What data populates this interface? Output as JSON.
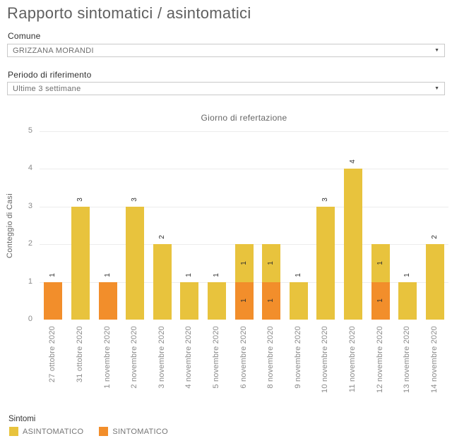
{
  "page": {
    "title": "Rapporto sintomatici / asintomatici"
  },
  "filters": {
    "comune": {
      "label": "Comune",
      "value": "GRIZZANA MORANDI"
    },
    "periodo": {
      "label": "Periodo di riferimento",
      "value": "Ultime 3 settimane"
    }
  },
  "chart_data": {
    "type": "bar",
    "stacked": true,
    "title": "Giorno di refertazione",
    "xlabel": "",
    "ylabel": "Conteggio di Casi",
    "ylim": [
      0,
      5
    ],
    "yticks": [
      0,
      1,
      2,
      3,
      4,
      5
    ],
    "grid": true,
    "label_rotation_deg": -90,
    "categories": [
      "27 ottobre 2020",
      "31 ottobre 2020",
      "1 novembre 2020",
      "2 novembre 2020",
      "3 novembre 2020",
      "4 novembre 2020",
      "5 novembre 2020",
      "6 novembre 2020",
      "8 novembre 2020",
      "9 novembre 2020",
      "10 novembre 2020",
      "11 novembre 2020",
      "12 novembre 2020",
      "13 novembre 2020",
      "14 novembre 2020"
    ],
    "series": [
      {
        "name": "SINTOMATICO",
        "color": "#F28E2B",
        "values": [
          1,
          0,
          1,
          0,
          0,
          0,
          0,
          1,
          1,
          0,
          0,
          0,
          1,
          0,
          0
        ]
      },
      {
        "name": "ASINTOMATICO",
        "color": "#E8C33D",
        "values": [
          0,
          3,
          0,
          3,
          2,
          1,
          1,
          1,
          1,
          1,
          3,
          4,
          1,
          1,
          2
        ]
      }
    ]
  },
  "legend": {
    "title": "Sintomi",
    "items": [
      {
        "label": "ASINTOMATICO",
        "color": "#E8C33D"
      },
      {
        "label": "SINTOMATICO",
        "color": "#F28E2B"
      }
    ]
  },
  "icons": {
    "dropdown_caret": "▼"
  }
}
